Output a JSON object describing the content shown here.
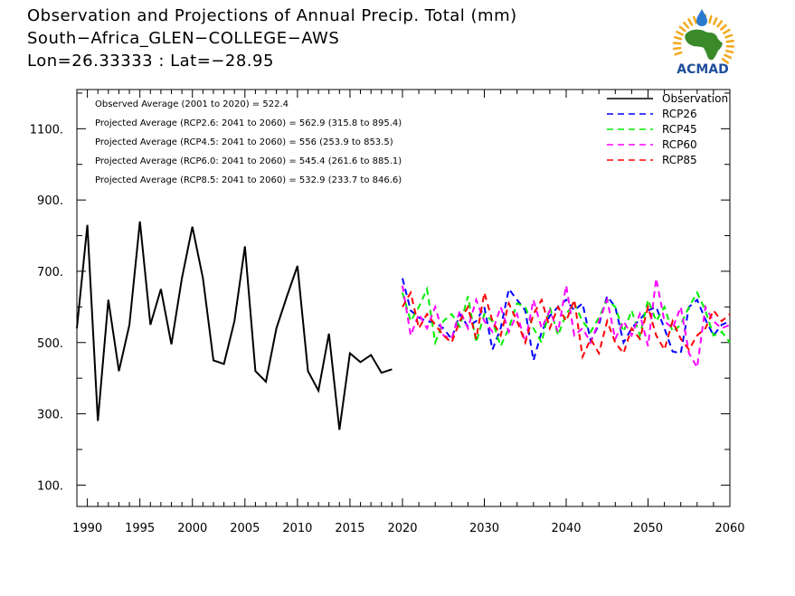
{
  "title": {
    "line1": "Observation and Projections of Annual Precip. Total (mm)",
    "line2": "South−Africa_GLEN−COLLEGE−AWS",
    "line3": "Lon=26.33333 : Lat=−28.95"
  },
  "logo": {
    "text": "ACMAD",
    "colors": {
      "africa": "#3a8a2a",
      "text": "#1f4e9c",
      "rays": "#f2a81d",
      "drop": "#2a7bd0"
    }
  },
  "chart_data": {
    "type": "line",
    "annotations": [
      "Observed Average (2001 to 2020) = 522.4",
      "Projected Average (RCP2.6: 2041 to 2060) = 562.9 (315.8 to 895.4)",
      "Projected Average (RCP4.5: 2041 to 2060) = 556 (253.9 to 853.5)",
      "Projected Average (RCP6.0: 2041 to 2060) = 545.4 (261.6 to 885.1)",
      "Projected Average (RCP8.5: 2041 to 2060) = 532.9 (233.7 to 846.6)"
    ],
    "xlim": [
      1989,
      2060
    ],
    "ylim": [
      40,
      1210
    ],
    "xticks_labeled": [
      1990,
      1995,
      2000,
      2005,
      2010,
      2015,
      2020,
      2030,
      2040,
      2050,
      2060
    ],
    "yticks_labeled": [
      100,
      300,
      500,
      700,
      900,
      1100
    ],
    "ytick_labels": [
      "100.",
      "300.",
      "500.",
      "700.",
      "900.",
      "1100."
    ],
    "grid": false,
    "legend_position": "top-right",
    "series": [
      {
        "name": "Observation",
        "color": "#000000",
        "style": "solid",
        "x": [
          1989,
          1990,
          1991,
          1992,
          1993,
          1994,
          1995,
          1996,
          1997,
          1998,
          1999,
          2000,
          2001,
          2002,
          2003,
          2004,
          2005,
          2006,
          2007,
          2008,
          2009,
          2010,
          2011,
          2012,
          2013,
          2014,
          2015,
          2016,
          2017,
          2018,
          2019
        ],
        "values": [
          540,
          830,
          280,
          620,
          420,
          550,
          840,
          550,
          650,
          495,
          680,
          825,
          680,
          450,
          440,
          560,
          770,
          420,
          390,
          540,
          630,
          715,
          420,
          365,
          525,
          255,
          470,
          445,
          465,
          415,
          425
        ]
      },
      {
        "name": "RCP26",
        "color": "#0000ff",
        "style": "dashed",
        "x": [
          2020,
          2021,
          2022,
          2023,
          2024,
          2025,
          2026,
          2027,
          2028,
          2029,
          2030,
          2031,
          2032,
          2033,
          2034,
          2035,
          2036,
          2037,
          2038,
          2039,
          2040,
          2041,
          2042,
          2043,
          2044,
          2045,
          2046,
          2047,
          2048,
          2049,
          2050,
          2051,
          2052,
          2053,
          2054,
          2055,
          2056,
          2057,
          2058,
          2059,
          2060
        ],
        "values": [
          680,
          590,
          570,
          560,
          555,
          540,
          510,
          580,
          545,
          560,
          600,
          480,
          540,
          650,
          620,
          590,
          450,
          530,
          575,
          600,
          620,
          590,
          610,
          505,
          550,
          630,
          600,
          500,
          540,
          565,
          590,
          600,
          540,
          475,
          470,
          600,
          620,
          565,
          520,
          550,
          560
        ]
      },
      {
        "name": "RCP45",
        "color": "#00ee00",
        "style": "dashed",
        "x": [
          2020,
          2021,
          2022,
          2023,
          2024,
          2025,
          2026,
          2027,
          2028,
          2029,
          2030,
          2031,
          2032,
          2033,
          2034,
          2035,
          2036,
          2037,
          2038,
          2039,
          2040,
          2041,
          2042,
          2043,
          2044,
          2045,
          2046,
          2047,
          2048,
          2049,
          2050,
          2051,
          2052,
          2053,
          2054,
          2055,
          2056,
          2057,
          2058,
          2059,
          2060
        ],
        "values": [
          640,
          560,
          600,
          650,
          500,
          560,
          580,
          545,
          630,
          500,
          580,
          560,
          490,
          540,
          610,
          600,
          540,
          500,
          600,
          520,
          580,
          610,
          560,
          530,
          570,
          620,
          600,
          530,
          590,
          520,
          620,
          560,
          600,
          530,
          550,
          600,
          640,
          590,
          520,
          530,
          500
        ]
      },
      {
        "name": "RCP60",
        "color": "#ff00ff",
        "style": "dashed",
        "x": [
          2020,
          2021,
          2022,
          2023,
          2024,
          2025,
          2026,
          2027,
          2028,
          2029,
          2030,
          2031,
          2032,
          2033,
          2034,
          2035,
          2036,
          2037,
          2038,
          2039,
          2040,
          2041,
          2042,
          2043,
          2044,
          2045,
          2046,
          2047,
          2048,
          2049,
          2050,
          2051,
          2052,
          2053,
          2054,
          2055,
          2056,
          2057,
          2058,
          2059,
          2060
        ],
        "values": [
          660,
          520,
          580,
          540,
          600,
          520,
          510,
          590,
          540,
          620,
          560,
          530,
          600,
          530,
          580,
          500,
          620,
          540,
          590,
          530,
          660,
          520,
          540,
          500,
          560,
          620,
          510,
          560,
          520,
          580,
          490,
          680,
          560,
          540,
          600,
          470,
          430,
          600,
          560,
          540,
          550
        ]
      },
      {
        "name": "RCP85",
        "color": "#ff0000",
        "style": "dashed",
        "x": [
          2020,
          2021,
          2022,
          2023,
          2024,
          2025,
          2026,
          2027,
          2028,
          2029,
          2030,
          2031,
          2032,
          2033,
          2034,
          2035,
          2036,
          2037,
          2038,
          2039,
          2040,
          2041,
          2042,
          2043,
          2044,
          2045,
          2046,
          2047,
          2048,
          2049,
          2050,
          2051,
          2052,
          2053,
          2054,
          2055,
          2056,
          2057,
          2058,
          2059,
          2060
        ],
        "values": [
          600,
          640,
          540,
          580,
          550,
          520,
          500,
          560,
          600,
          510,
          640,
          560,
          520,
          610,
          560,
          500,
          580,
          620,
          540,
          600,
          560,
          620,
          460,
          510,
          470,
          560,
          500,
          470,
          540,
          510,
          600,
          520,
          480,
          560,
          510,
          480,
          520,
          540,
          590,
          560,
          580
        ]
      }
    ]
  }
}
